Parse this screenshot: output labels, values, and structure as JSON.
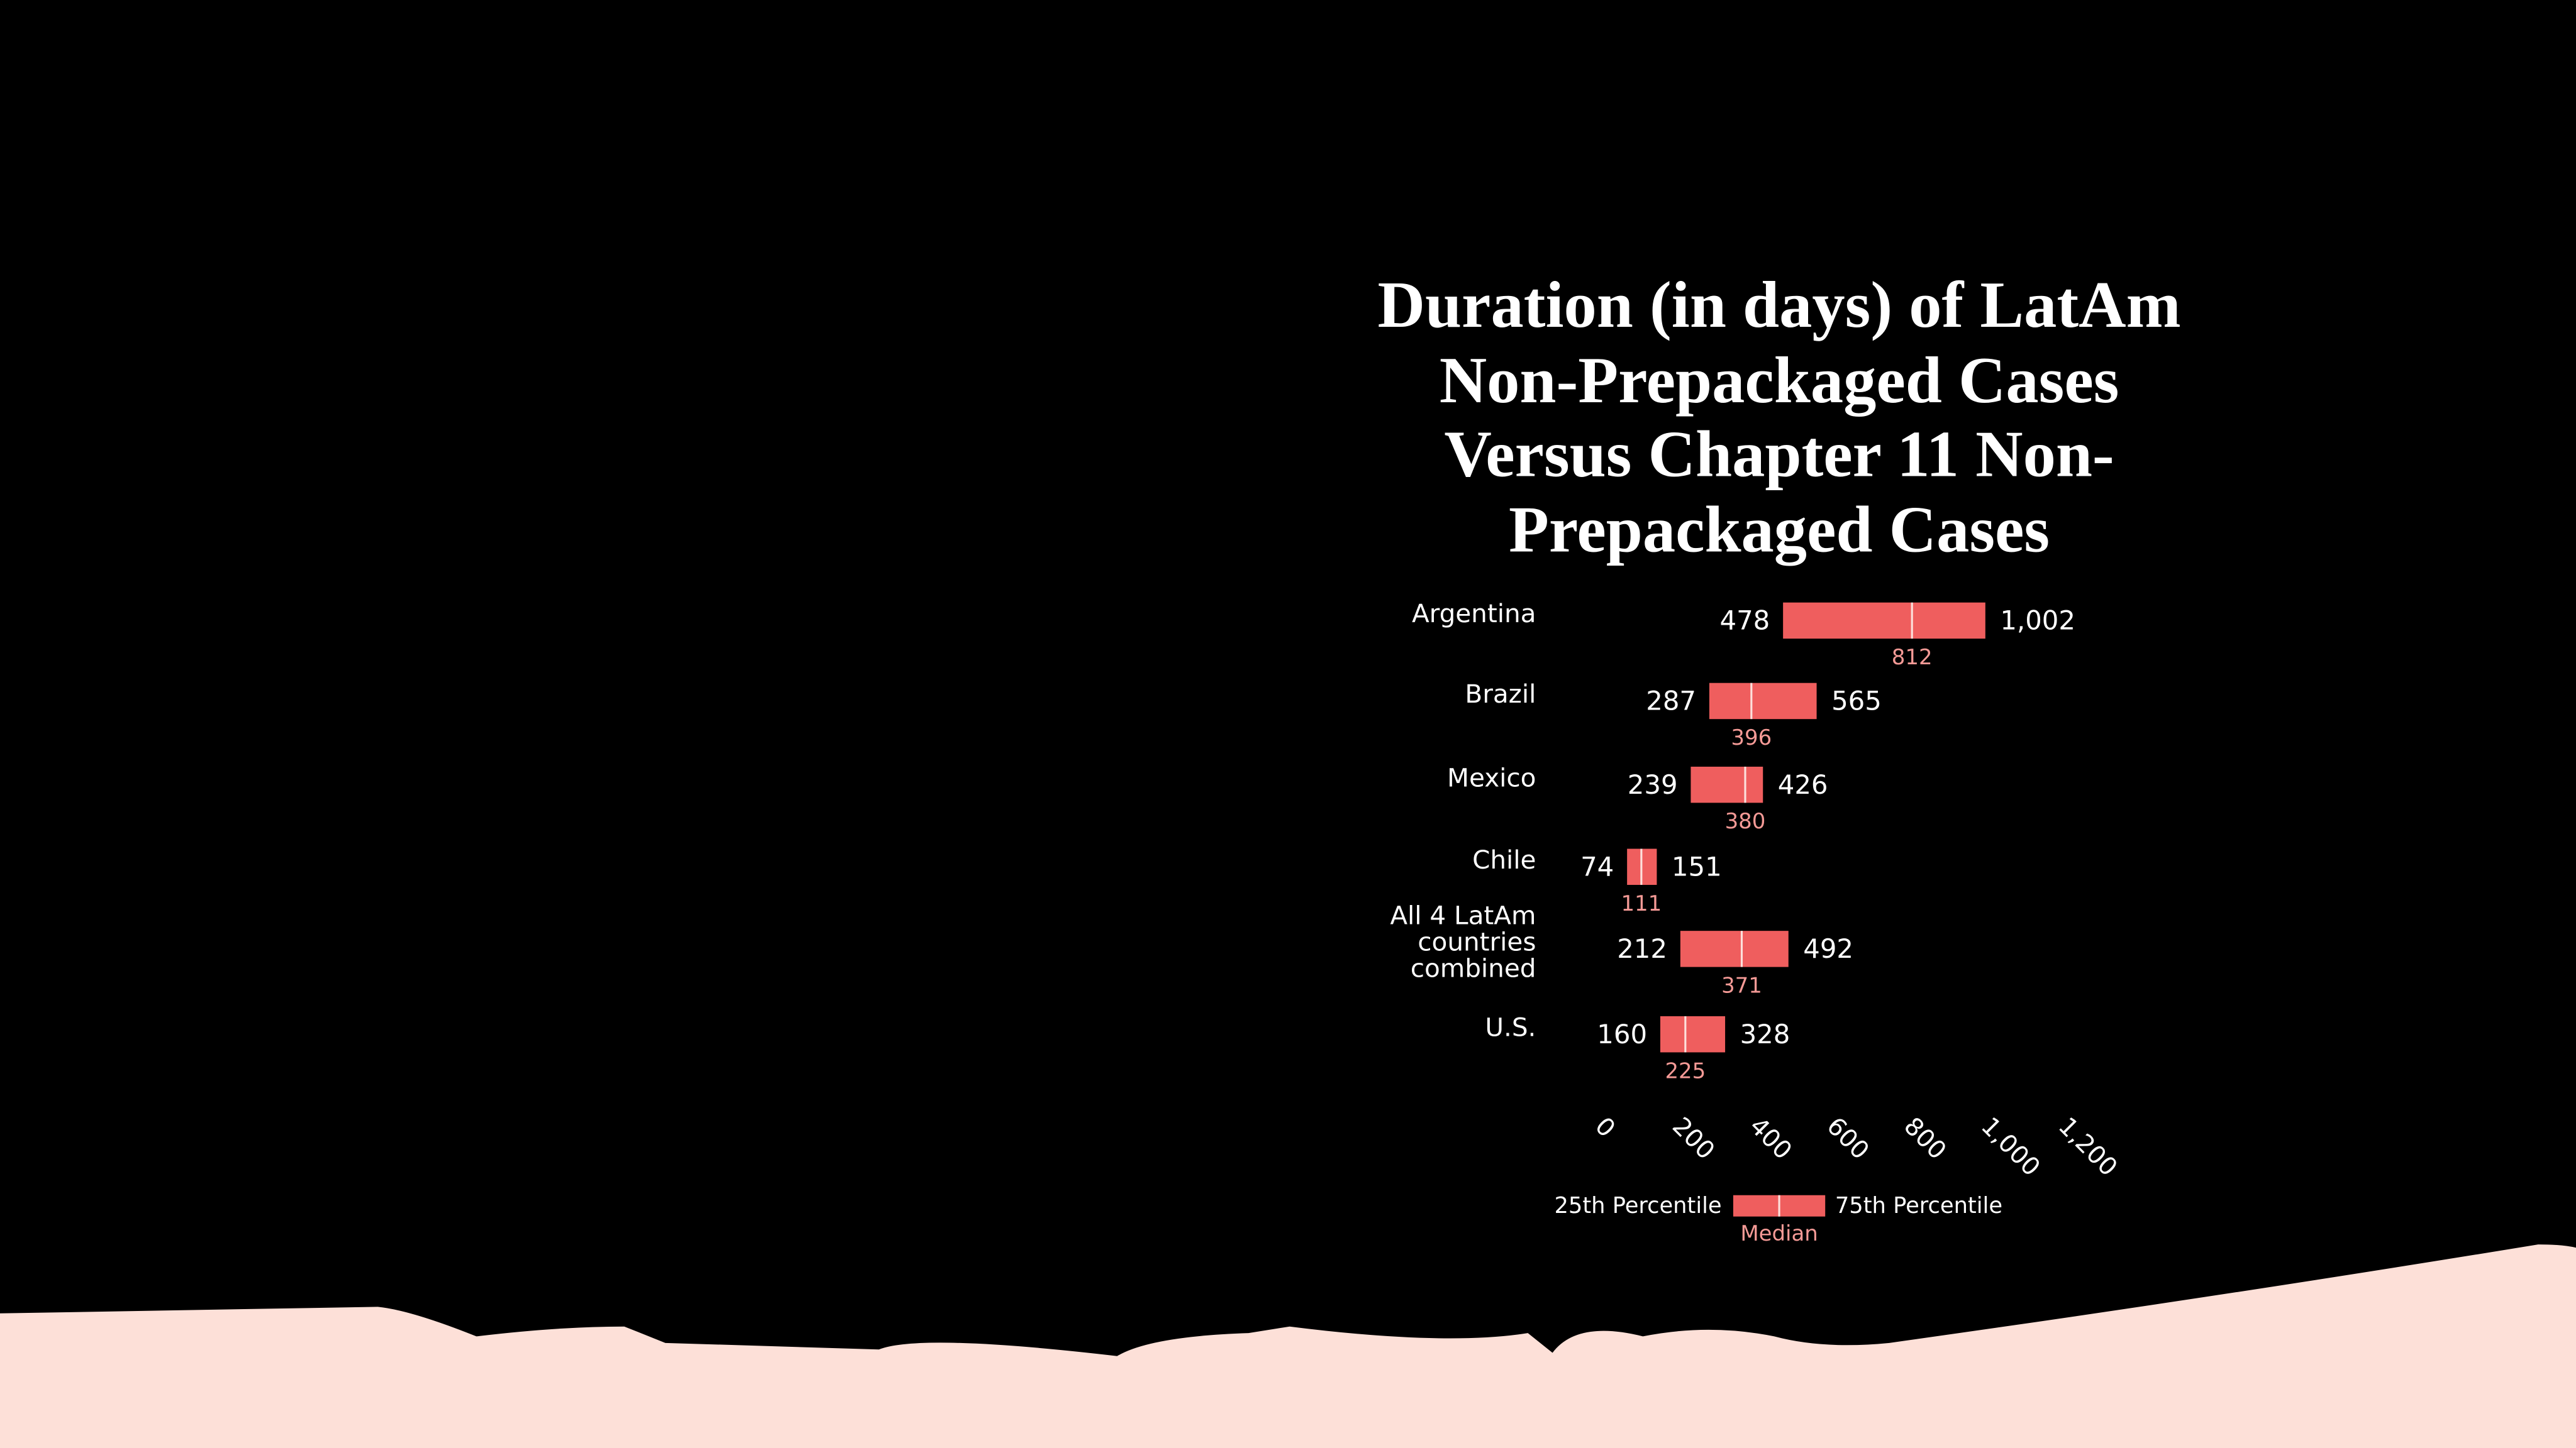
{
  "chart_data": {
    "type": "range-bar",
    "title": "Duration (in days) of LatAm Non-Prepackaged Cases Versus Chapter 11 Non-Prepackaged Cases",
    "categories": [
      "Argentina",
      "Brazil",
      "Mexico",
      "Chile",
      "All 4 LatAm countries combined",
      "U.S."
    ],
    "series": [
      {
        "name": "25th Percentile",
        "color": "#ef5e5e",
        "values": [
          478,
          287,
          239,
          74,
          212,
          160
        ]
      },
      {
        "name": "Median",
        "color": "#fde0dc",
        "values": [
          812,
          396,
          380,
          111,
          371,
          225
        ]
      },
      {
        "name": "75th Percentile",
        "color": "#ef5e5e",
        "values": [
          1002,
          565,
          426,
          151,
          492,
          328
        ],
        "value_labels": [
          "1,002",
          "565",
          "426",
          "151",
          "492",
          "328"
        ]
      }
    ],
    "xlim": [
      0,
      1200
    ],
    "xticks": [
      0,
      200,
      400,
      600,
      800,
      {
        "value": 1000,
        "label": "1,000"
      },
      {
        "value": 1200,
        "label": "1,200"
      }
    ],
    "grid": false
  }
}
